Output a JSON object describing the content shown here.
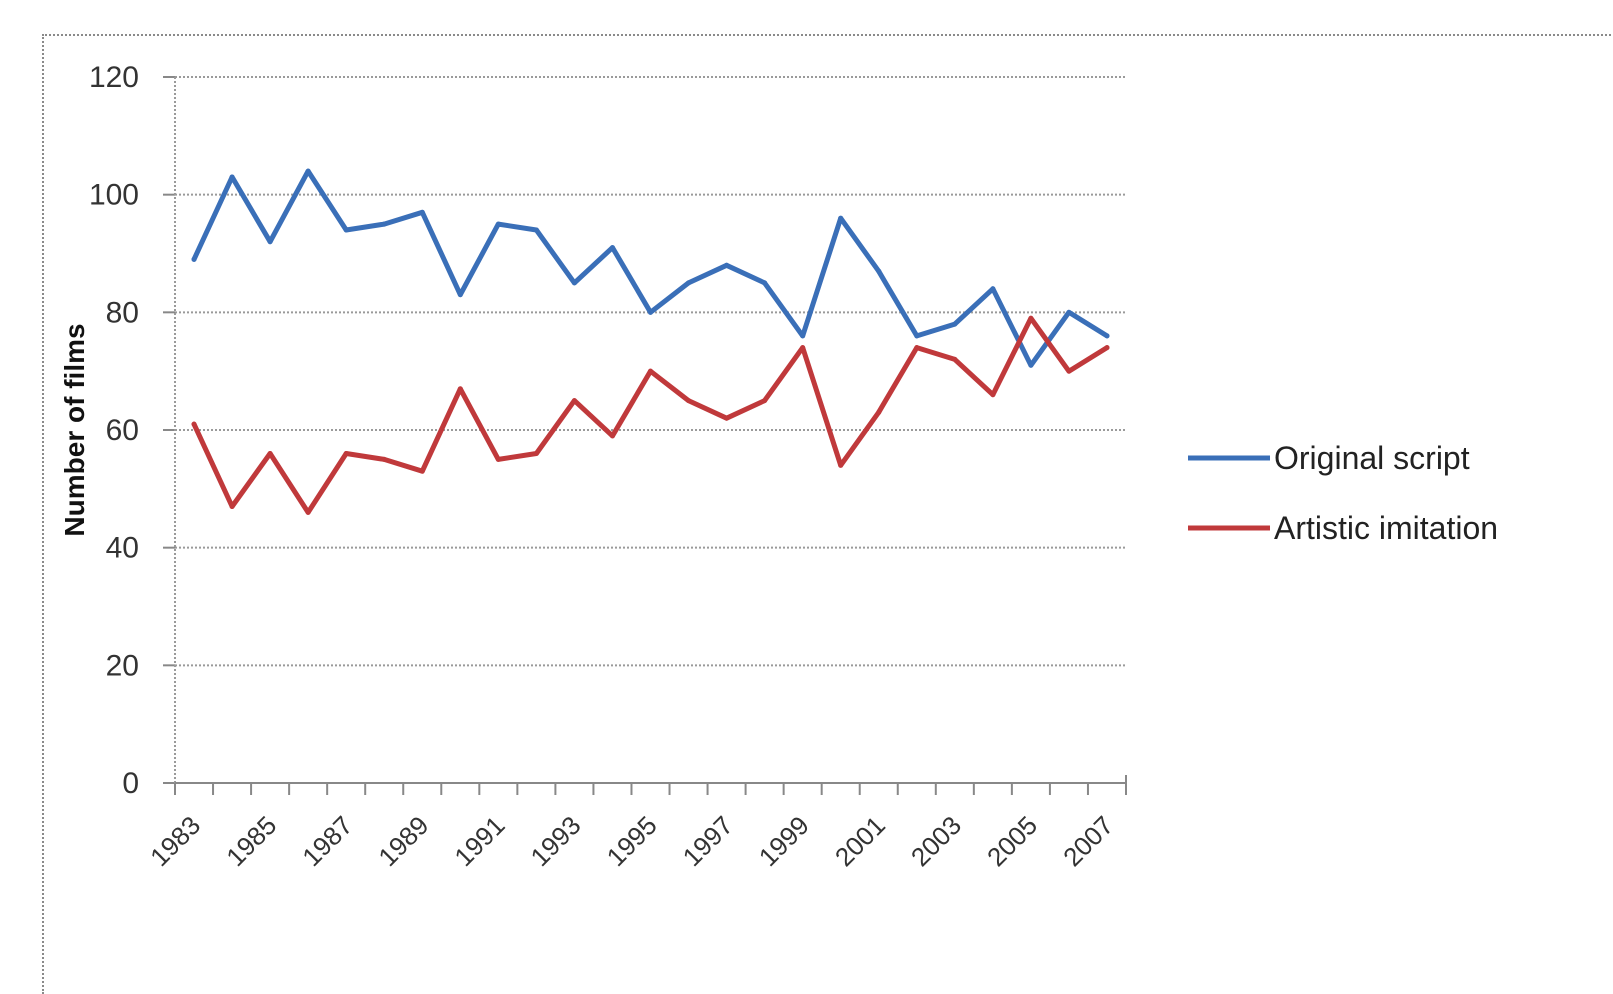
{
  "chart_data": {
    "type": "line",
    "title": "",
    "xlabel": "",
    "ylabel": "Number of films",
    "ylim": [
      0,
      120
    ],
    "yticks": [
      0,
      20,
      40,
      60,
      80,
      100,
      120
    ],
    "grid": true,
    "legend_position": "right",
    "x": [
      1983,
      1984,
      1985,
      1986,
      1987,
      1988,
      1989,
      1990,
      1991,
      1992,
      1993,
      1994,
      1995,
      1996,
      1997,
      1998,
      1999,
      2000,
      2001,
      2002,
      2003,
      2004,
      2005,
      2006,
      2007
    ],
    "xtick_labels": [
      "1983",
      "1985",
      "1987",
      "1989",
      "1991",
      "1993",
      "1995",
      "1997",
      "1999",
      "2001",
      "2003",
      "2005",
      "2007"
    ],
    "series": [
      {
        "name": "Original script",
        "color": "#3a6fb8",
        "values": [
          89,
          103,
          92,
          104,
          94,
          95,
          97,
          83,
          95,
          94,
          85,
          91,
          80,
          85,
          88,
          85,
          76,
          96,
          87,
          76,
          78,
          84,
          71,
          80,
          76
        ]
      },
      {
        "name": "Artistic imitation",
        "color": "#c0393b",
        "values": [
          61,
          47,
          56,
          46,
          56,
          55,
          53,
          67,
          55,
          56,
          65,
          59,
          70,
          65,
          62,
          65,
          74,
          54,
          63,
          74,
          72,
          66,
          79,
          70,
          74
        ]
      }
    ]
  }
}
